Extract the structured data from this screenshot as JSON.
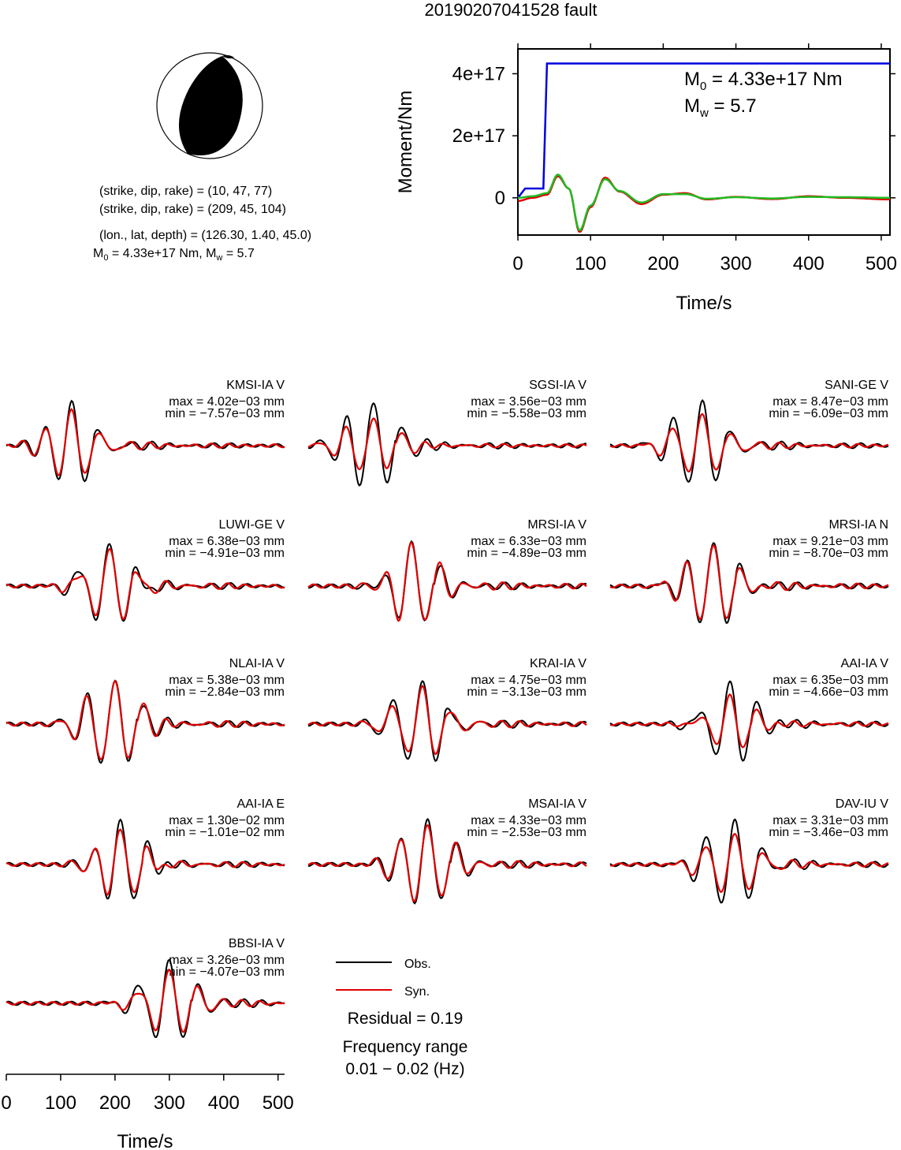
{
  "title": "20190207041528 fault",
  "mechanism": {
    "plane1": "(strike, dip, rake) = (10, 47, 77)",
    "plane2": "(strike, dip, rake) = (209, 45, 104)",
    "location": "(lon., lat, depth) = (126.30, 1.40, 45.0)",
    "moment_prefix": "M",
    "moment_sub": "0",
    "moment_value": " = 4.33e+17 Nm, M",
    "mw_sub": "w",
    "mw_value": " = 5.7"
  },
  "stf": {
    "ylabel": "Moment/Nm",
    "xlabel": "Time/s",
    "yticks": [
      "0",
      "2e+17",
      "4e+17"
    ],
    "xticks": [
      "0",
      "100",
      "200",
      "300",
      "400",
      "500"
    ],
    "m0_label": "M",
    "m0_sub": "0",
    "m0_value": " = 4.33e+17 Nm",
    "mw_label": "M",
    "mw_sub": "w",
    "mw_value": " = 5.7"
  },
  "legend": {
    "obs": "Obs.",
    "syn": "Syn.",
    "residual": "Residual = 0.19",
    "freq_label": "Frequency range",
    "freq_value": "0.01 − 0.02 (Hz)"
  },
  "bottom_axis": {
    "xlabel": "Time/s",
    "xticks": [
      "0",
      "100",
      "200",
      "300",
      "400",
      "500"
    ]
  },
  "colors": {
    "obs": "#000000",
    "syn": "#e00000",
    "cumulative": "#0000e0",
    "green": "#22bb22"
  },
  "chart_data": [
    {
      "type": "line",
      "title": "",
      "xlabel": "Time/s",
      "ylabel": "Moment/Nm",
      "xlim": [
        0,
        512
      ],
      "ylim": [
        -1.2e+17,
        4.8e+17
      ],
      "series": [
        {
          "x": [
            0,
            10,
            20,
            35,
            40,
            512
          ],
          "y": [
            0,
            3e+16,
            3e+16,
            3e+16,
            4.33e+17,
            4.33e+17
          ]
        },
        {
          "x": [
            0,
            20,
            40,
            55,
            70,
            85,
            100,
            120,
            140,
            170,
            200,
            230,
            260,
            300,
            350,
            400,
            450,
            512
          ],
          "y": [
            -1e+16,
            0,
            1e+16,
            7e+16,
            3e+16,
            -1.1e+17,
            -3e+16,
            6.5e+16,
            2e+16,
            -2e+16,
            1e+16,
            1.5e+16,
            -5000000000000000.0,
            3000000000000000.0,
            -4000000000000000.0,
            5000000000000000.0,
            0,
            -5000000000000000.0
          ]
        },
        {
          "x": [
            0,
            20,
            40,
            55,
            70,
            85,
            100,
            120,
            140,
            170,
            200,
            230,
            260,
            300,
            350,
            400,
            450,
            512
          ],
          "y": [
            0,
            5000000000000000.0,
            1.5e+16,
            7.5e+16,
            3e+16,
            -1.05e+17,
            -2.5e+16,
            6e+16,
            2.2e+16,
            -1.5e+16,
            1.2e+16,
            1.2e+16,
            -3000000000000000.0,
            2000000000000000.0,
            -2000000000000000.0,
            3000000000000000.0,
            2000000000000000.0,
            0
          ]
        }
      ]
    },
    {
      "type": "line",
      "traces": [
        {
          "station": "KMSI-IA V",
          "max": "max = 4.02e−03 mm",
          "min": "min = −7.57e−03 mm",
          "peak_t": 120,
          "max_v": 4.02,
          "min_v": 7.57,
          "obs_polarity": -1,
          "syn_scale": 0.85
        },
        {
          "station": "SGSI-IA V",
          "max": "max = 3.56e−03 mm",
          "min": "min = −5.58e−03 mm",
          "peak_t": 120,
          "max_v": 3.56,
          "min_v": 5.58,
          "obs_polarity": -1,
          "syn_scale": 0.65
        },
        {
          "station": "SANI-GE V",
          "max": "max = 8.47e−03 mm",
          "min": "min = −6.09e−03 mm",
          "peak_t": 170,
          "max_v": 8.47,
          "min_v": 6.09,
          "obs_polarity": 1,
          "syn_scale": 0.75
        },
        {
          "station": "LUWI-GE V",
          "max": "max = 6.38e−03 mm",
          "min": "min = −4.91e−03 mm",
          "peak_t": 190,
          "max_v": 6.38,
          "min_v": 4.91,
          "obs_polarity": 1,
          "syn_scale": 0.95
        },
        {
          "station": "MRSI-IA V",
          "max": "max = 6.33e−03 mm",
          "min": "min = −4.89e−03 mm",
          "peak_t": 190,
          "max_v": 6.33,
          "min_v": 4.89,
          "obs_polarity": 1,
          "syn_scale": 1.05
        },
        {
          "station": "MRSI-IA N",
          "max": "max = 9.21e−03 mm",
          "min": "min = −8.70e−03 mm",
          "peak_t": 190,
          "max_v": 9.21,
          "min_v": 8.7,
          "obs_polarity": 1,
          "syn_scale": 0.95
        },
        {
          "station": "NLAI-IA V",
          "max": "max = 5.38e−03 mm",
          "min": "min = −2.84e−03 mm",
          "peak_t": 200,
          "max_v": 5.38,
          "min_v": 2.84,
          "obs_polarity": 1,
          "syn_scale": 1.0
        },
        {
          "station": "KRAI-IA V",
          "max": "max = 4.75e−03 mm",
          "min": "min = −3.13e−03 mm",
          "peak_t": 210,
          "max_v": 4.75,
          "min_v": 3.13,
          "obs_polarity": 1,
          "syn_scale": 0.9
        },
        {
          "station": "AAI-IA V",
          "max": "max = 6.35e−03 mm",
          "min": "min = −4.66e−03 mm",
          "peak_t": 220,
          "max_v": 6.35,
          "min_v": 4.66,
          "obs_polarity": 1,
          "syn_scale": 0.7
        },
        {
          "station": "AAI-IA E",
          "max": "max = 1.30e−02 mm",
          "min": "min = −1.01e−02 mm",
          "peak_t": 210,
          "max_v": 13.0,
          "min_v": 10.1,
          "obs_polarity": 1,
          "syn_scale": 0.85
        },
        {
          "station": "MSAI-IA V",
          "max": "max = 4.33e−03 mm",
          "min": "min = −2.53e−03 mm",
          "peak_t": 220,
          "max_v": 4.33,
          "min_v": 2.53,
          "obs_polarity": 1,
          "syn_scale": 0.95
        },
        {
          "station": "DAV-IU V",
          "max": "max = 3.31e−03 mm",
          "min": "min = −3.46e−03 mm",
          "peak_t": 230,
          "max_v": 3.31,
          "min_v": 3.46,
          "obs_polarity": 1,
          "syn_scale": 0.75
        },
        {
          "station": "BBSI-IA V",
          "max": "max = 3.26e−03 mm",
          "min": "min = −4.07e−03 mm",
          "peak_t": 300,
          "max_v": 3.26,
          "min_v": 4.07,
          "obs_polarity": 1,
          "syn_scale": 0.85
        }
      ]
    }
  ]
}
